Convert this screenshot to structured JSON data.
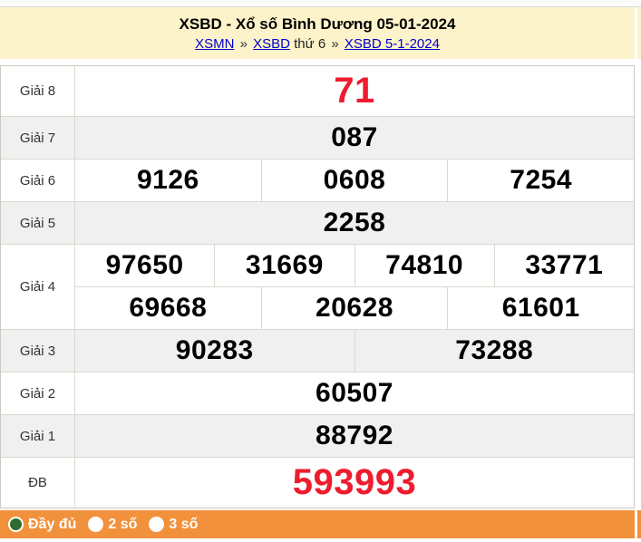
{
  "header": {
    "title": "XSBD - Xổ số Bình Dương 05-01-2024",
    "breadcrumb": {
      "xsmn": "XSMN",
      "sep1": "»",
      "xsbd": "XSBD",
      "day": "thứ 6",
      "sep2": "»",
      "date": "XSBD 5-1-2024"
    }
  },
  "results": {
    "rows": [
      {
        "label": "Giải 8",
        "groups": [
          [
            "71"
          ]
        ]
      },
      {
        "label": "Giải 7",
        "groups": [
          [
            "087"
          ]
        ]
      },
      {
        "label": "Giải 6",
        "groups": [
          [
            "9126",
            "0608",
            "7254"
          ]
        ]
      },
      {
        "label": "Giải 5",
        "groups": [
          [
            "2258"
          ]
        ]
      },
      {
        "label": "Giải 4",
        "groups": [
          [
            "97650",
            "31669",
            "74810",
            "33771"
          ],
          [
            "69668",
            "20628",
            "61601"
          ]
        ]
      },
      {
        "label": "Giải 3",
        "groups": [
          [
            "90283",
            "73288"
          ]
        ]
      },
      {
        "label": "Giải 2",
        "groups": [
          [
            "60507"
          ]
        ]
      },
      {
        "label": "Giải 1",
        "groups": [
          [
            "88792"
          ]
        ]
      },
      {
        "label": "ĐB",
        "groups": [
          [
            "593993"
          ]
        ]
      }
    ]
  },
  "footer": {
    "options": [
      {
        "label": "Đầy đủ",
        "selected": true
      },
      {
        "label": "2 số",
        "selected": false
      },
      {
        "label": "3 số",
        "selected": false
      }
    ]
  },
  "colors": {
    "header_bg": "#fdf3cb",
    "accent_orange": "#f2913c",
    "highlight_red": "#ee1c2e",
    "row_alt_bg": "#f0f0f0",
    "link_blue": "#0000cc",
    "radio_selected_green": "#2e6b30",
    "table_border": "#cfc8c0"
  }
}
